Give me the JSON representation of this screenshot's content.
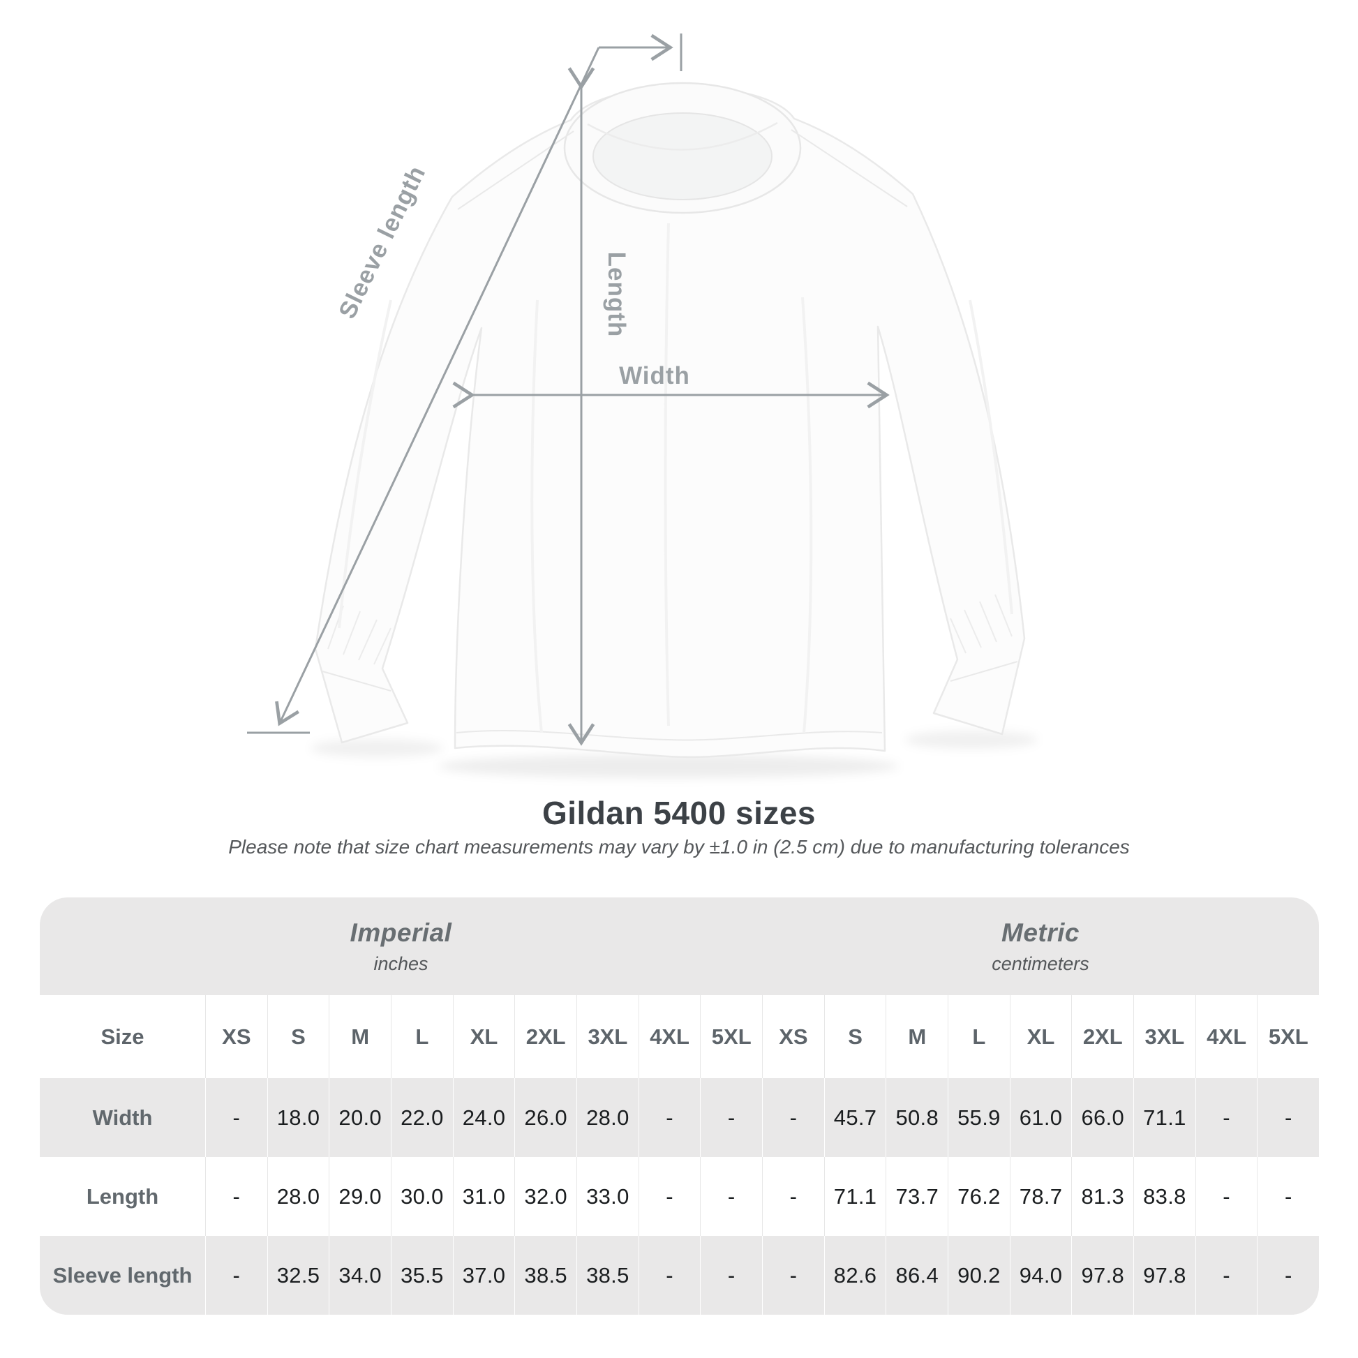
{
  "colors": {
    "dimension_gray": "#9aa0a4",
    "stripe_gray": "#e9e8e8",
    "title_dark": "#3c4146",
    "value_text": "#1a1d1f"
  },
  "diagram": {
    "labels": {
      "sleeve_length": "Sleeve length",
      "length": "Length",
      "width": "Width"
    }
  },
  "header": {
    "title": "Gildan 5400 sizes",
    "subtitle": "Please note that size chart measurements may vary by ±1.0 in (2.5 cm) due to manufacturing tolerances"
  },
  "table": {
    "size_col_header": "Size",
    "sizes": [
      "XS",
      "S",
      "M",
      "L",
      "XL",
      "2XL",
      "3XL",
      "4XL",
      "5XL"
    ],
    "unit_groups": [
      {
        "name": "Imperial",
        "unit": "inches"
      },
      {
        "name": "Metric",
        "unit": "centimeters"
      }
    ]
  },
  "chart_data": {
    "type": "table",
    "title": "Gildan 5400 sizes",
    "column_groups": [
      "Imperial (inches)",
      "Metric (centimeters)"
    ],
    "columns": [
      "XS",
      "S",
      "M",
      "L",
      "XL",
      "2XL",
      "3XL",
      "4XL",
      "5XL"
    ],
    "rows": [
      {
        "label": "Width",
        "imperial": [
          "-",
          "18.0",
          "20.0",
          "22.0",
          "24.0",
          "26.0",
          "28.0",
          "-",
          "-"
        ],
        "metric": [
          "-",
          "45.7",
          "50.8",
          "55.9",
          "61.0",
          "66.0",
          "71.1",
          "-",
          "-"
        ]
      },
      {
        "label": "Length",
        "imperial": [
          "-",
          "28.0",
          "29.0",
          "30.0",
          "31.0",
          "32.0",
          "33.0",
          "-",
          "-"
        ],
        "metric": [
          "-",
          "71.1",
          "73.7",
          "76.2",
          "78.7",
          "81.3",
          "83.8",
          "-",
          "-"
        ]
      },
      {
        "label": "Sleeve length",
        "imperial": [
          "-",
          "32.5",
          "34.0",
          "35.5",
          "37.0",
          "38.5",
          "38.5",
          "-",
          "-"
        ],
        "metric": [
          "-",
          "82.6",
          "86.4",
          "90.2",
          "94.0",
          "97.8",
          "97.8",
          "-",
          "-"
        ]
      }
    ]
  }
}
